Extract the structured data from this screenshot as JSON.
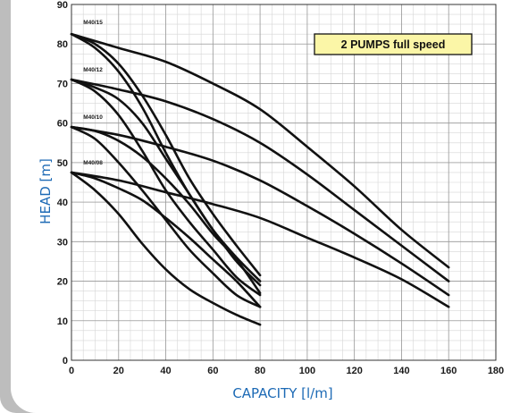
{
  "chart_data": {
    "type": "line",
    "xlabel": "CAPACITY [l/m]",
    "ylabel": "HEAD [m]",
    "xlim": [
      0,
      180
    ],
    "ylim": [
      0,
      90
    ],
    "xticks": [
      0,
      20,
      40,
      60,
      80,
      100,
      120,
      140,
      160,
      180
    ],
    "yticks": [
      0,
      10,
      20,
      30,
      40,
      50,
      60,
      70,
      80,
      90
    ],
    "grid": true,
    "annotation": "2 PUMPS full speed",
    "annotation_color": "#fbf6a7",
    "axis_title_color": "#1d6ab5",
    "line_color": "#111111",
    "curve_labels": [
      {
        "text": "M40/15",
        "at": [
          5,
          85
        ]
      },
      {
        "text": "M40/12",
        "at": [
          5,
          73
        ]
      },
      {
        "text": "M40/10",
        "at": [
          5,
          61
        ]
      },
      {
        "text": "M40/08",
        "at": [
          5,
          49.5
        ]
      }
    ],
    "series": [
      {
        "x": [
          0,
          10,
          20,
          30,
          40,
          50,
          60,
          70,
          80
        ],
        "y": [
          82.5,
          80,
          75,
          67,
          57,
          46,
          37,
          29,
          21.5
        ]
      },
      {
        "x": [
          0,
          20,
          40,
          60,
          80,
          100,
          120,
          140,
          160
        ],
        "y": [
          82.5,
          79,
          75.5,
          70,
          63.5,
          54,
          44,
          33,
          23.5
        ]
      },
      {
        "x": [
          0,
          10,
          20,
          30,
          40,
          50,
          60,
          70,
          80
        ],
        "y": [
          82.5,
          79,
          73,
          64,
          52.5,
          42,
          33,
          25,
          19
        ]
      },
      {
        "x": [
          0,
          10,
          20,
          30,
          40,
          50,
          60,
          70,
          80
        ],
        "y": [
          71,
          69,
          66,
          60,
          51,
          42,
          33,
          26,
          20
        ]
      },
      {
        "x": [
          0,
          20,
          40,
          60,
          80,
          100,
          120,
          140,
          160
        ],
        "y": [
          71,
          68.5,
          65.5,
          61,
          55,
          47,
          38,
          29,
          20
        ]
      },
      {
        "x": [
          0,
          10,
          20,
          30,
          40,
          50,
          60,
          70,
          80
        ],
        "y": [
          71,
          68,
          62,
          53,
          43,
          35,
          28,
          21,
          16.5
        ]
      },
      {
        "x": [
          0,
          10,
          20,
          30,
          40,
          50,
          60,
          70,
          80
        ],
        "y": [
          59,
          58,
          55.5,
          51.5,
          46,
          39.5,
          32,
          25.5,
          17
        ]
      },
      {
        "x": [
          0,
          20,
          40,
          60,
          80,
          100,
          120,
          140,
          160
        ],
        "y": [
          59,
          57,
          54,
          50.5,
          45.5,
          39,
          32,
          24.5,
          16.5
        ]
      },
      {
        "x": [
          0,
          10,
          20,
          30,
          40,
          50,
          60,
          70,
          80
        ],
        "y": [
          59,
          56,
          50,
          43,
          35.5,
          28,
          22,
          16.5,
          13.5
        ]
      },
      {
        "x": [
          0,
          10,
          20,
          30,
          40,
          50,
          60,
          70,
          80
        ],
        "y": [
          47.5,
          46,
          43.5,
          40.5,
          36,
          31,
          25.5,
          20,
          13.5
        ]
      },
      {
        "x": [
          0,
          20,
          40,
          60,
          80,
          100,
          120,
          140,
          160
        ],
        "y": [
          47.5,
          45.5,
          42.5,
          39.5,
          36,
          31,
          26,
          20.5,
          13.5
        ]
      },
      {
        "x": [
          0,
          10,
          20,
          30,
          40,
          50,
          60,
          70,
          80
        ],
        "y": [
          47.5,
          43,
          37,
          29.5,
          23,
          18,
          14.5,
          11.5,
          9
        ]
      }
    ]
  }
}
